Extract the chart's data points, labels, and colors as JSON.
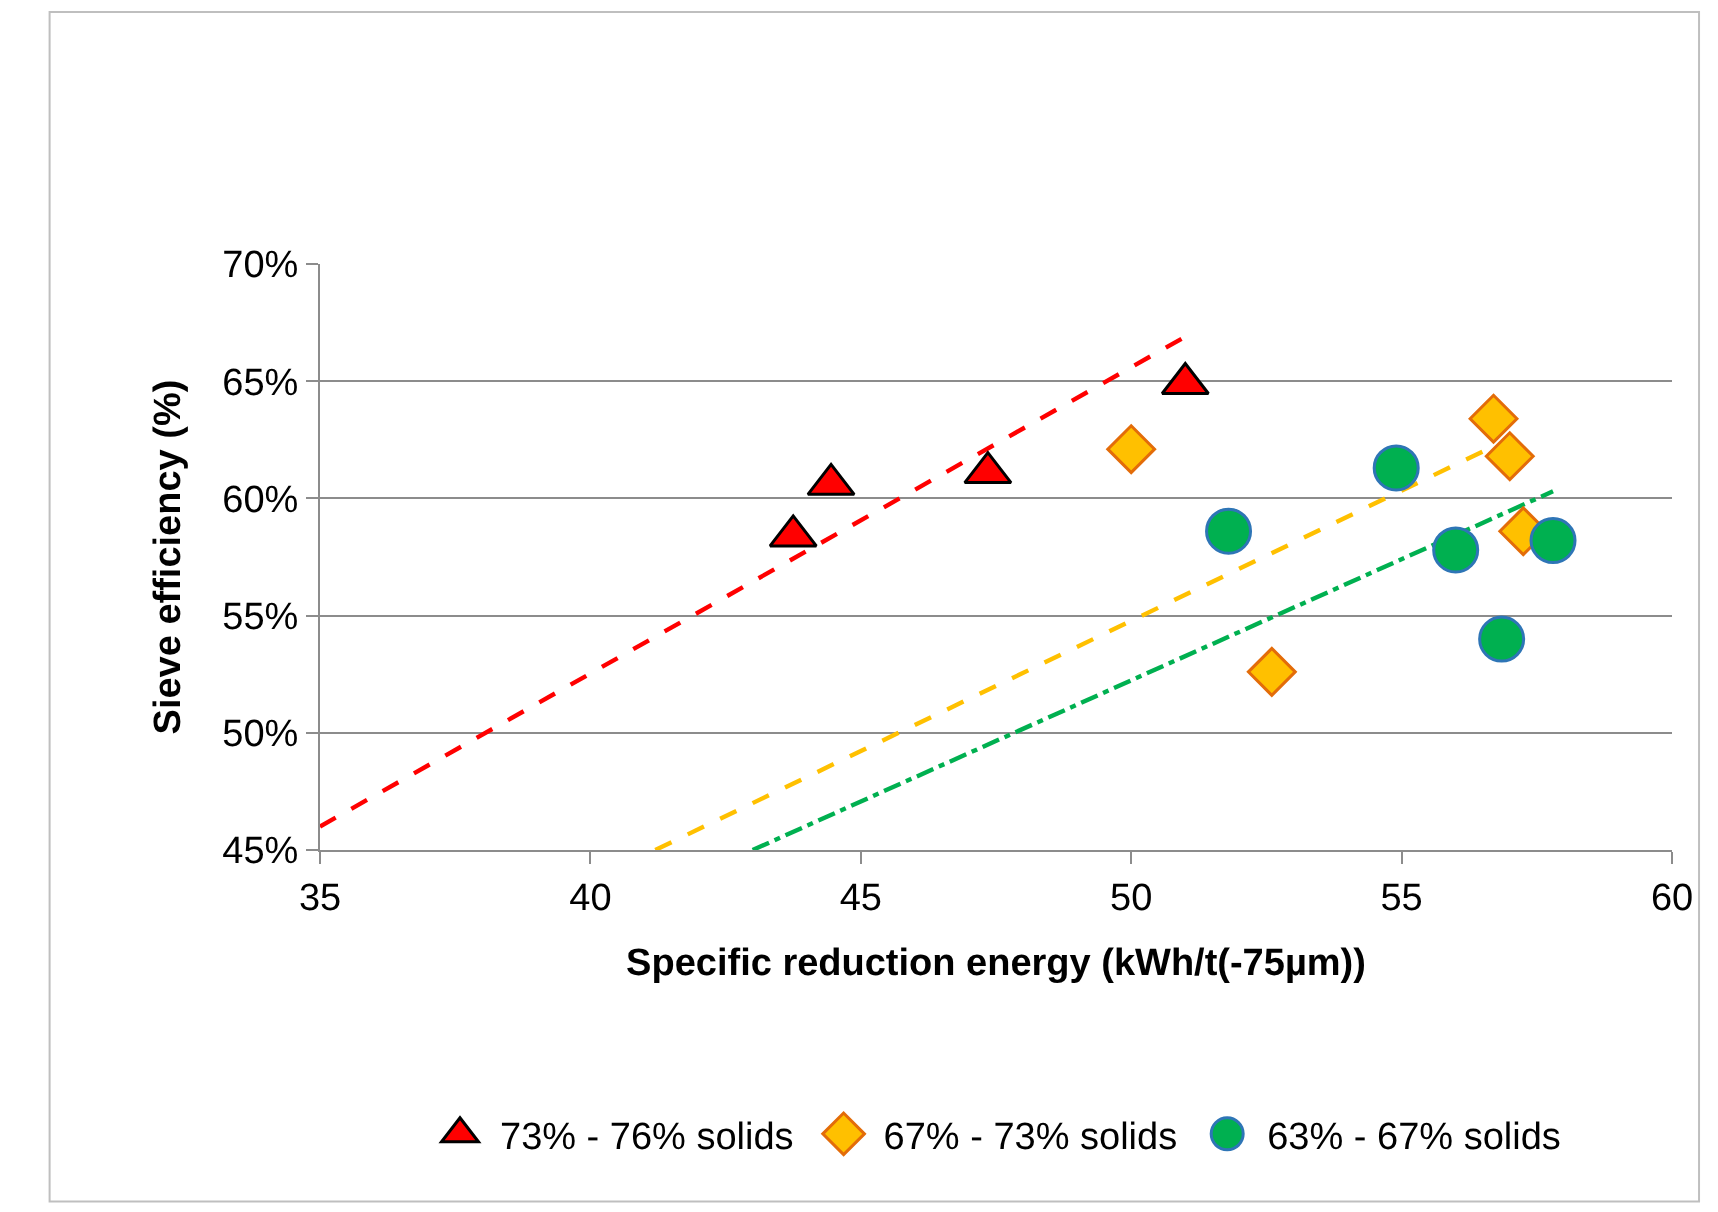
{
  "chart_data": {
    "type": "scatter",
    "xlabel": "Specific reduction energy (kWh/t(-75µm))",
    "ylabel": "Sieve efficiency (%)",
    "xlim": [
      35,
      60
    ],
    "xticks": [
      35,
      40,
      45,
      50,
      55,
      60
    ],
    "ylim": [
      45,
      70
    ],
    "yticks": [
      {
        "value": 45,
        "label": "45%"
      },
      {
        "value": 50,
        "label": "50%"
      },
      {
        "value": 55,
        "label": "55%"
      },
      {
        "value": 60,
        "label": "60%"
      },
      {
        "value": 65,
        "label": "65%"
      },
      {
        "value": 70,
        "label": "70%"
      }
    ],
    "grid": "y",
    "legend": "bottom",
    "series": [
      {
        "type": "line",
        "color": "#ff0000",
        "line_style": "dashed",
        "marker": "none",
        "x": [
          35,
          51.0
        ],
        "values": [
          46.0,
          66.9
        ]
      },
      {
        "type": "line",
        "color": "#ffc000",
        "line_style": "dashed",
        "marker": "none",
        "x": [
          41.2,
          56.5
        ],
        "values": [
          45,
          62.0
        ]
      },
      {
        "type": "line",
        "color": "#00b050",
        "line_style": "dashdot",
        "marker": "none",
        "x": [
          43.0,
          57.8
        ],
        "values": [
          45,
          60.3
        ]
      },
      {
        "name": "73% - 76% solids",
        "color": "#ff0000",
        "marker": "triangle",
        "x": [
          43.75,
          44.45,
          47.35,
          51.0
        ],
        "values": [
          58.4,
          60.6,
          61.1,
          64.9
        ]
      },
      {
        "name": "67% - 73% solids",
        "color": "#ffc000",
        "marker": "diamond",
        "x": [
          50.0,
          52.6,
          56.7,
          57.0,
          57.25
        ],
        "values": [
          62.1,
          52.6,
          63.4,
          61.8,
          58.6
        ]
      },
      {
        "name": "63% - 67% solids",
        "color": "#00b050",
        "marker": "circle",
        "x": [
          51.8,
          54.9,
          56.0,
          56.85,
          57.8
        ],
        "values": [
          58.6,
          61.3,
          57.8,
          54.0,
          58.2
        ]
      }
    ]
  }
}
